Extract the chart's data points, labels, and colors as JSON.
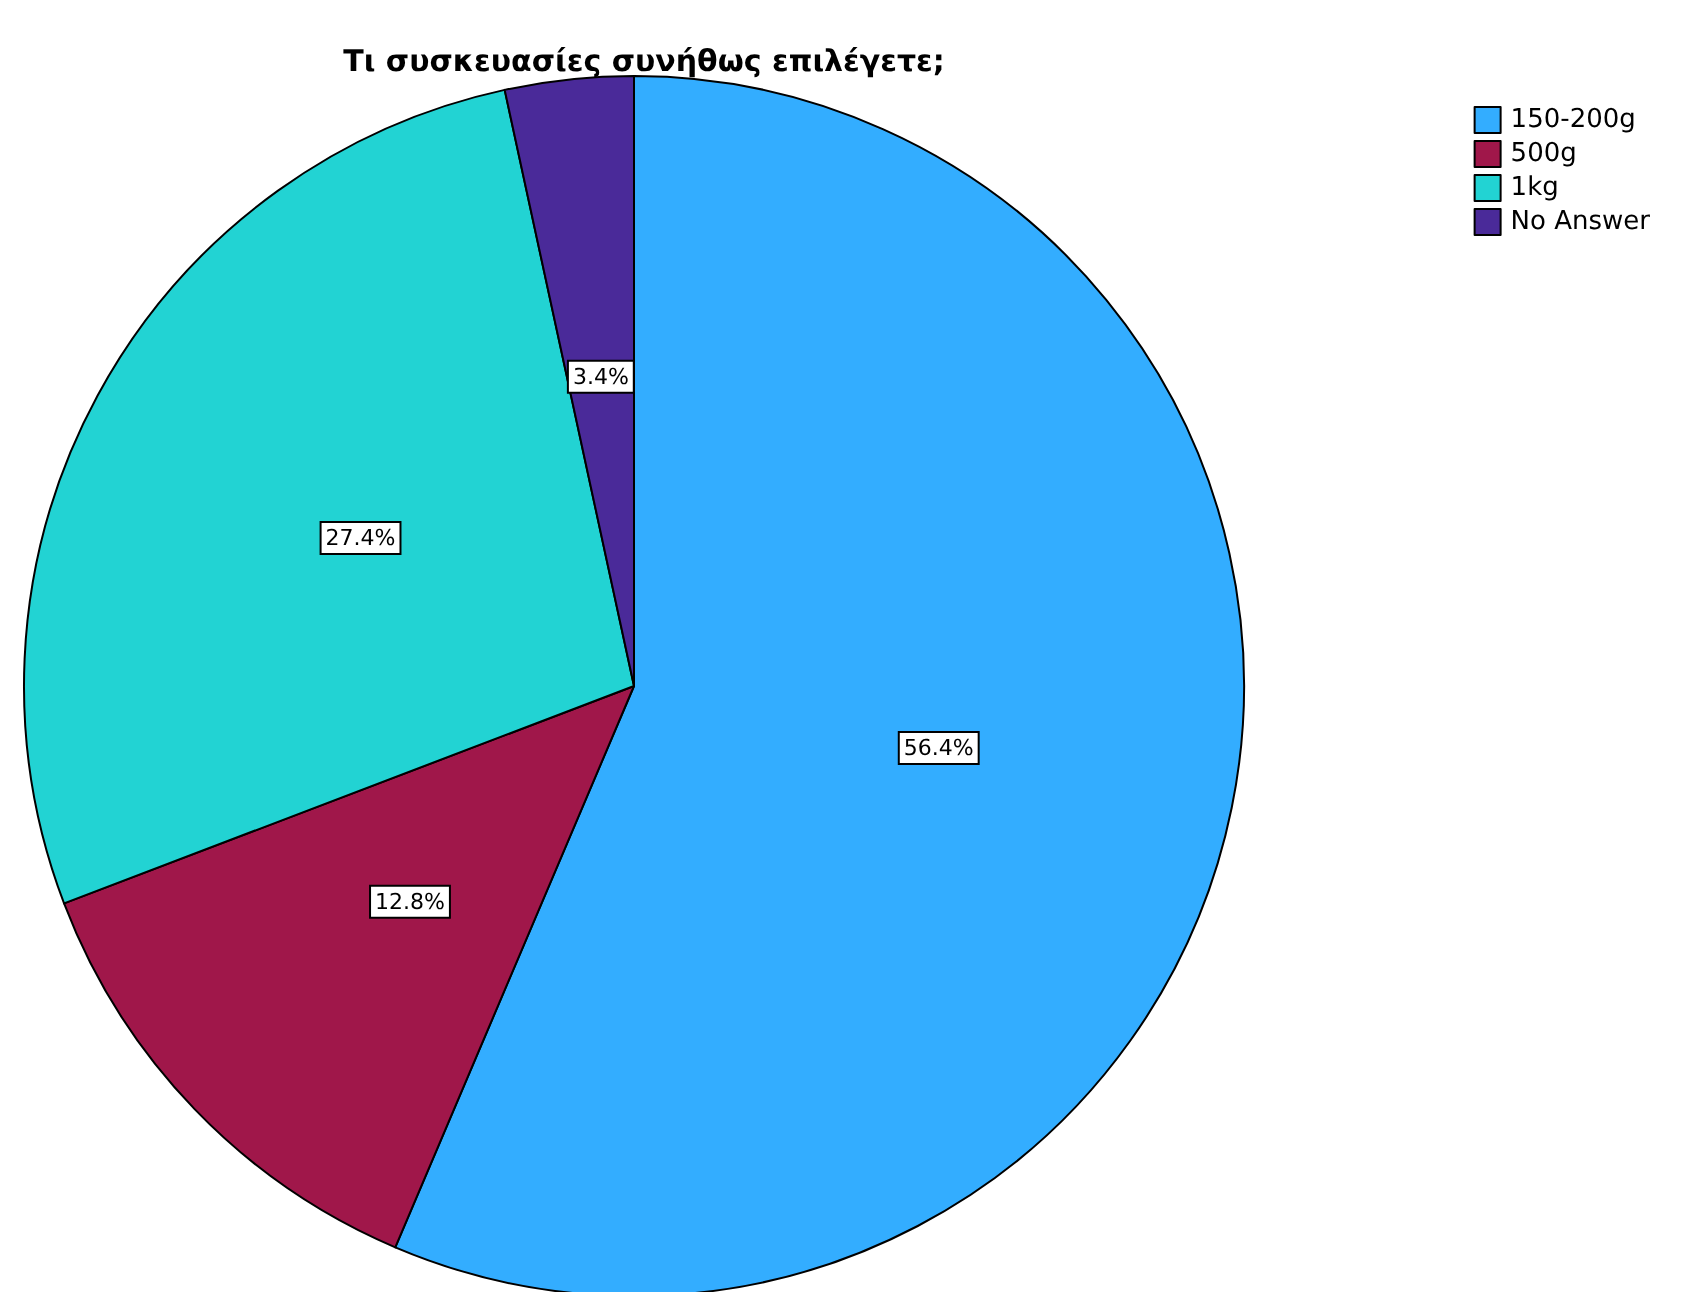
{
  "chart_data": {
    "type": "pie",
    "title": "Τι συσκευασίες συνήθως επιλέγετε;",
    "categories": [
      "150-200g",
      "500g",
      "1kg",
      "No Answer"
    ],
    "values": [
      56.4,
      12.8,
      27.4,
      3.4
    ],
    "colors": [
      "#33adff",
      "#a0174a",
      "#22d3d3",
      "#4a2a99"
    ],
    "value_labels": [
      "56.4%",
      "12.8%",
      "27.4%",
      "3.4%"
    ],
    "legend": "top right"
  }
}
